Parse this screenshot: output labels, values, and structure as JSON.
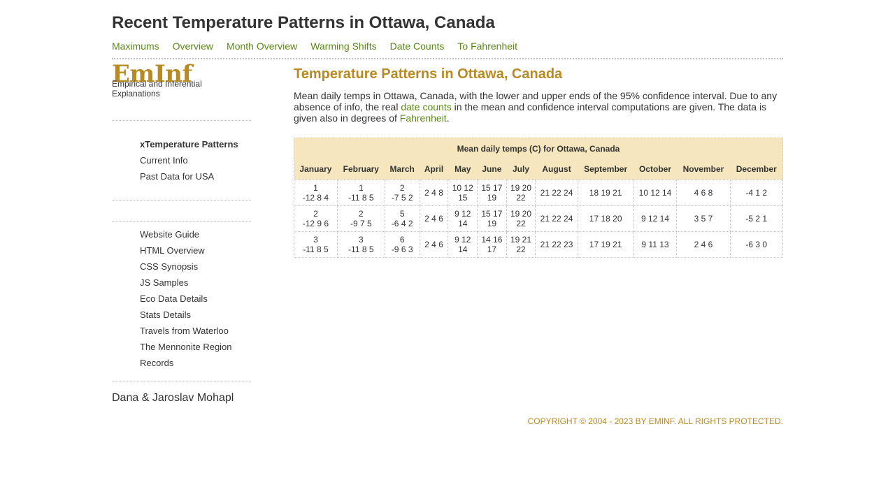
{
  "header": {
    "title": "Recent Temperature Patterns in Ottawa, Canada",
    "nav": [
      "Maximums",
      "Overview",
      "Month Overview",
      "Warming Shifts",
      "Date Counts",
      "To Fahrenheit"
    ]
  },
  "sidebar": {
    "logo": "EmInf",
    "tagline": "Empirical and Inferential Explanations",
    "menu1": [
      {
        "label": "xTemperature Patterns",
        "active": true
      },
      {
        "label": "Current Info"
      },
      {
        "label": "Past Data for USA"
      }
    ],
    "menu2": [
      {
        "label": "Website Guide"
      },
      {
        "label": "HTML Overview"
      },
      {
        "label": "CSS Synopsis"
      },
      {
        "label": "JS Samples"
      },
      {
        "label": "Eco Data Details"
      },
      {
        "label": "Stats Details"
      },
      {
        "label": "Travels from Waterloo"
      },
      {
        "label": "The Mennonite Region"
      },
      {
        "label": "Records"
      }
    ],
    "authors": "Dana & Jaroslav Mohapl"
  },
  "main": {
    "heading": "Temperature Patterns in Ottawa, Canada",
    "desc_part1": "Mean daily temps in Ottawa, Canada, with the lower and upper ends of the 95% confidence interval. Due to any absence of info, the real ",
    "desc_link1": "date counts",
    "desc_part2": " in the mean and confidence interval computations are given. The data is given also in degrees of ",
    "desc_link2": "Fahrenheit",
    "desc_part3": "."
  },
  "table": {
    "caption": "Mean daily temps (C) for Ottawa, Canada",
    "columns": [
      "January",
      "February",
      "March",
      "April",
      "May",
      "June",
      "July",
      "August",
      "September",
      "October",
      "November",
      "December"
    ],
    "rows": [
      [
        "1\n-12 8 4",
        "1\n-11 8 5",
        "2\n-7 5 2",
        "2 4 8",
        "10 12\n15",
        "15 17\n19",
        "19 20\n22",
        "21 22 24",
        "18 19 21",
        "10 12 14",
        "4 6 8",
        "-4 1 2"
      ],
      [
        "2\n-12 9 6",
        "2\n-9 7 5",
        "5\n-6 4 2",
        "2 4 6",
        "9 12\n14",
        "15 17\n19",
        "19 20\n22",
        "21 22 24",
        "17 18 20",
        "9 12 14",
        "3 5 7",
        "-5 2 1"
      ],
      [
        "3\n-11 8 5",
        "3\n-11 8 5",
        "6\n-9 6 3",
        "2 4 6",
        "9 12\n14",
        "14 16\n17",
        "19 21\n22",
        "21 22 23",
        "17 19 21",
        "9 11 13",
        "2 4 6",
        "-6 3 0"
      ]
    ]
  },
  "footer": {
    "copyright": "COPYRIGHT © 2004 - 2023 BY EMINF. ALL RIGHTS PROTECTED."
  },
  "colors": {
    "accent_gold": "#b88a24",
    "link_green": "#5b8a16",
    "table_header_bg": "#f5e6bd",
    "text": "#333333"
  }
}
